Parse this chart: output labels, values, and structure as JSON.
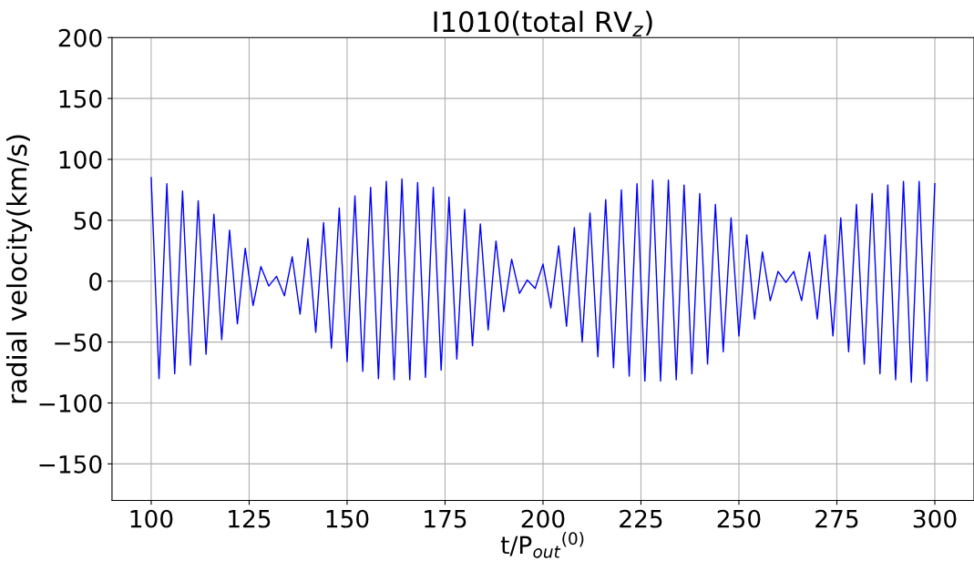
{
  "chart_data": {
    "type": "line",
    "title": "I1010(total RV$_{z}$)",
    "xlabel": "t/P$_{out}$$^{(0)}$",
    "ylabel": "radial velocity(km/s)",
    "x": [
      100,
      102,
      104,
      106,
      108,
      110,
      112,
      114,
      116,
      118,
      120,
      122,
      124,
      126,
      128,
      130,
      132,
      134,
      136,
      138,
      140,
      142,
      144,
      146,
      148,
      150,
      152,
      154,
      156,
      158,
      160,
      162,
      164,
      166,
      168,
      170,
      172,
      174,
      176,
      178,
      180,
      182,
      184,
      186,
      188,
      190,
      192,
      194,
      196,
      198,
      200,
      202,
      204,
      206,
      208,
      210,
      212,
      214,
      216,
      218,
      220,
      222,
      224,
      226,
      228,
      230,
      232,
      234,
      236,
      238,
      240,
      242,
      244,
      246,
      248,
      250,
      252,
      254,
      256,
      258,
      260,
      262,
      264,
      266,
      268,
      270,
      272,
      274,
      276,
      278,
      280,
      282,
      284,
      286,
      288,
      290,
      292,
      294,
      296,
      298,
      300
    ],
    "series": [
      {
        "color": "#0000ff",
        "values": [
          85,
          -80,
          80,
          -76,
          74,
          -69,
          66,
          -60,
          55,
          -48,
          42,
          -35,
          27,
          -20,
          12,
          -4,
          4,
          -12,
          20,
          -27,
          35,
          -42,
          48,
          -55,
          60,
          -66,
          70,
          -74,
          77,
          -80,
          82,
          -81,
          84,
          -81,
          81,
          -79,
          77,
          -73,
          69,
          -64,
          59,
          -53,
          47,
          -40,
          33,
          -25,
          18,
          -10,
          1,
          -6,
          14,
          -22,
          29,
          -37,
          44,
          -50,
          56,
          -62,
          67,
          -71,
          75,
          -78,
          80,
          -82,
          83,
          -82,
          83,
          -81,
          79,
          -76,
          72,
          -68,
          63,
          -58,
          52,
          -45,
          38,
          -31,
          24,
          -16,
          8,
          -1,
          8,
          -16,
          24,
          -31,
          38,
          -45,
          52,
          -58,
          63,
          -68,
          72,
          -76,
          79,
          -81,
          82,
          -83,
          82,
          -82,
          80
        ]
      }
    ],
    "xlim": [
      90,
      310
    ],
    "ylim": [
      -180,
      200
    ],
    "xticks": [
      100,
      125,
      150,
      175,
      200,
      225,
      250,
      275,
      300
    ],
    "yticks": [
      {
        "value": -150,
        "label": "−150"
      },
      {
        "value": -100,
        "label": "−100"
      },
      {
        "value": -50,
        "label": "−50"
      },
      0,
      50,
      100,
      150,
      200
    ],
    "grid": true,
    "legend": false,
    "marker": "none",
    "line_style": "solid"
  }
}
